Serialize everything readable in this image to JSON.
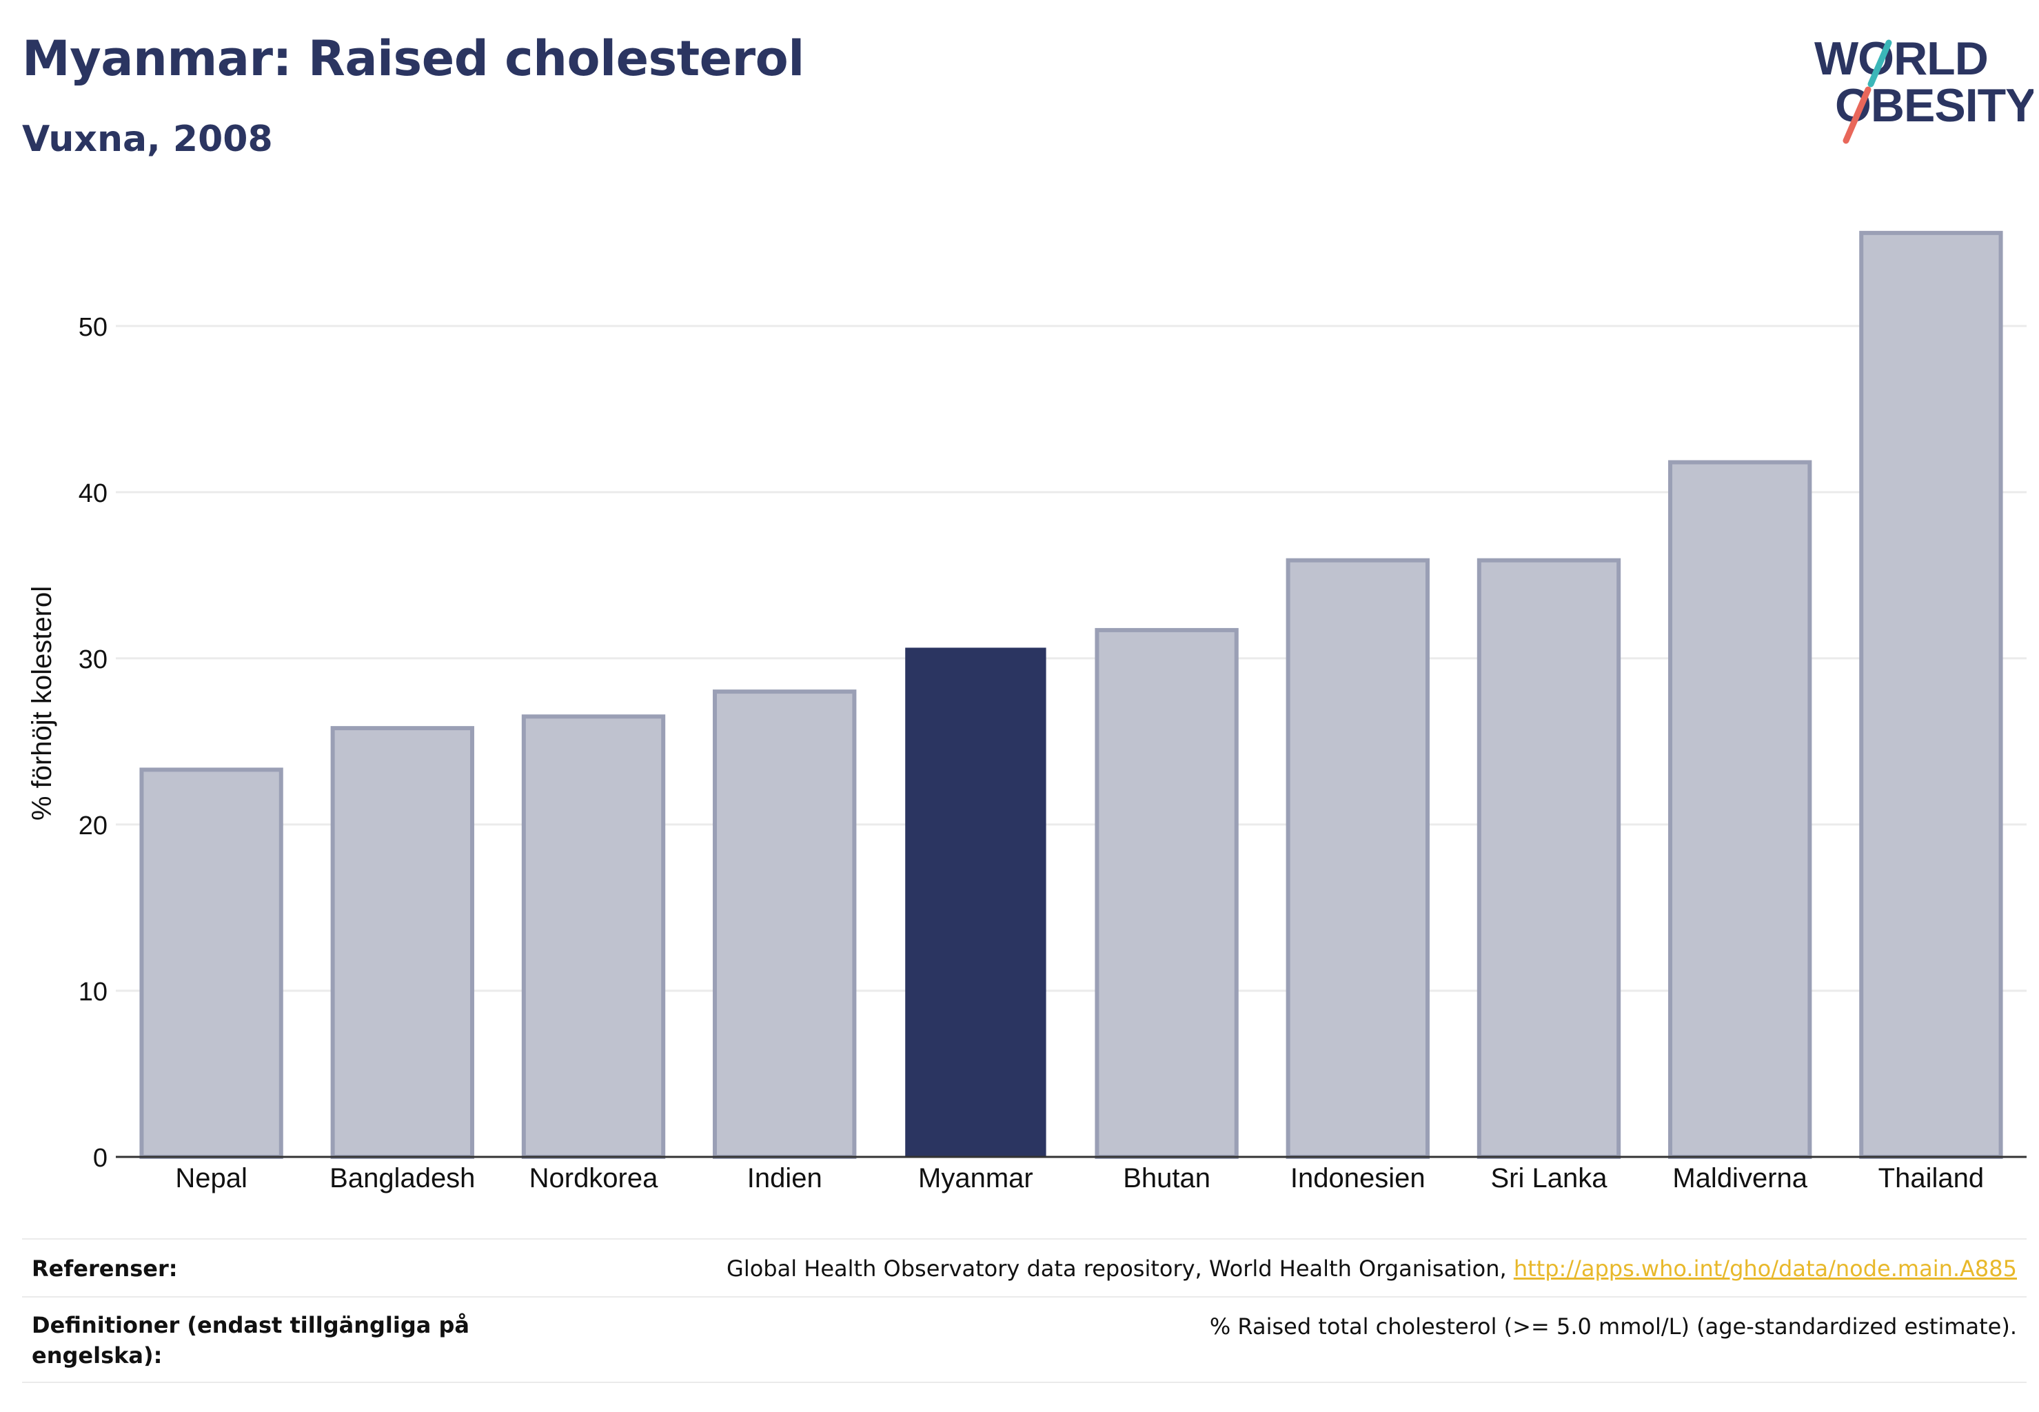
{
  "header": {
    "title": "Myanmar: Raised cholesterol",
    "subtitle": "Vuxna, 2008"
  },
  "logo": {
    "line1": "WORLD",
    "line2": "OBESITY",
    "colors": {
      "text": "#2b3561",
      "teal": "#3bb6b8",
      "coral": "#e8675a"
    }
  },
  "chart_data": {
    "type": "bar",
    "title": "Myanmar: Raised cholesterol",
    "subtitle": "Vuxna, 2008",
    "ylabel": "% förhöjt kolesterol",
    "xlabel": "",
    "categories": [
      "Nepal",
      "Bangladesh",
      "Nordkorea",
      "Indien",
      "Myanmar",
      "Bhutan",
      "Indonesien",
      "Sri Lanka",
      "Maldiverna",
      "Thailand"
    ],
    "values": [
      23.3,
      25.8,
      26.5,
      28.0,
      30.6,
      31.7,
      35.9,
      35.9,
      41.8,
      55.6
    ],
    "highlight": "Myanmar",
    "ylim": [
      0,
      58
    ],
    "yticks": [
      0,
      10,
      20,
      30,
      40,
      50
    ],
    "grid": true,
    "colors": {
      "highlight": "#2b3561",
      "other": "#bfc2cf",
      "other_edge": "#9a9fb5",
      "grid": "#ebebeb",
      "axis": "#333333"
    }
  },
  "footer": {
    "references_label": "Referenser:",
    "references_text": "Global Health Observatory data repository, World Health Organisation, ",
    "references_link": "http://apps.who.int/gho/data/node.main.A885",
    "definitions_label": "Definitioner (endast tillgängliga på engelska):",
    "definitions_text": "% Raised total cholesterol (>= 5.0 mmol/L) (age-standardized estimate)."
  }
}
